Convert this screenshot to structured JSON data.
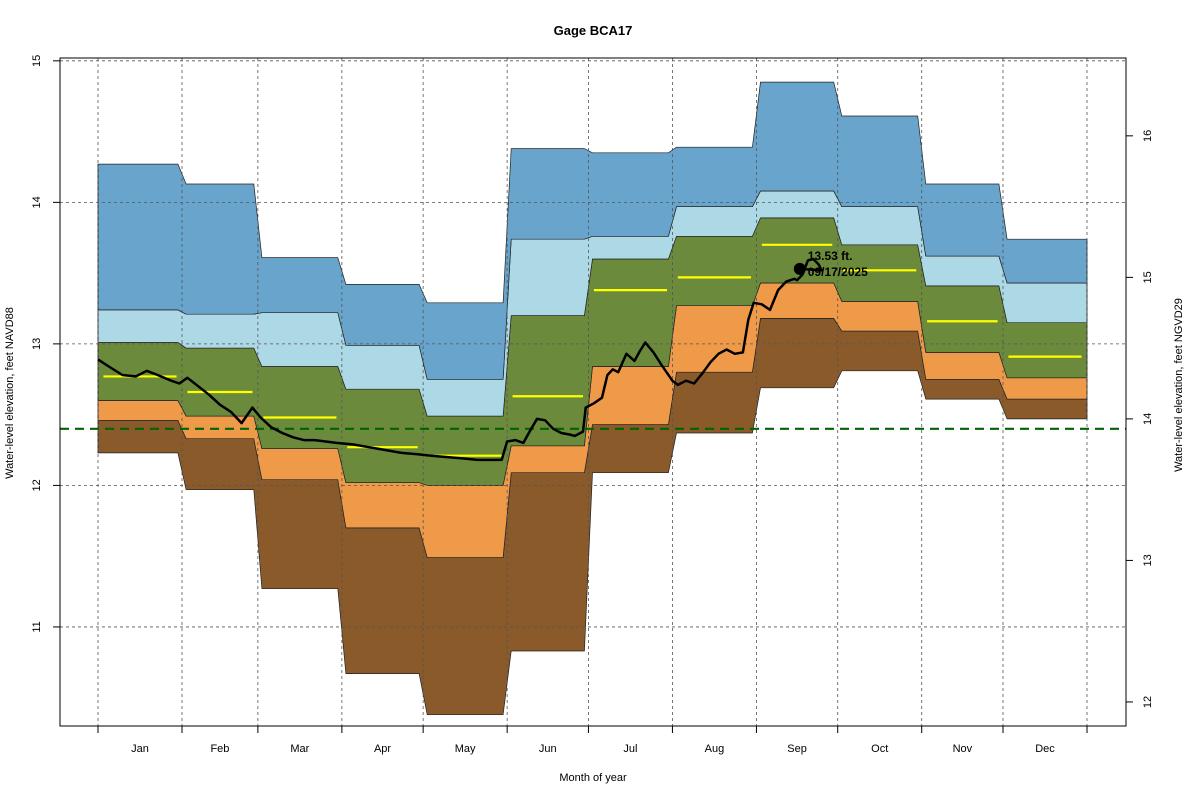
{
  "chart_data": {
    "type": "area",
    "title": "Gage BCA17",
    "xlabel": "Month of year",
    "ylabel_left": "Water-level elevation, feet NAVD88",
    "ylabel_right": "Water-level elevation, feet NGVD29",
    "yticks_left": [
      "11",
      "12",
      "13",
      "14",
      "15"
    ],
    "yticks_right": [
      "12",
      "13",
      "14",
      "15",
      "16"
    ],
    "ylim_left": [
      10.3,
      15.02
    ],
    "datum_offset": 1.53,
    "grid": "dashed",
    "months": [
      "Jan",
      "Feb",
      "Mar",
      "Apr",
      "May",
      "Jun",
      "Jul",
      "Aug",
      "Sep",
      "Oct",
      "Nov",
      "Dec"
    ],
    "band_colors": [
      "#8B5A2B",
      "#EF9A48",
      "#6C8A3C",
      "#ADD8E6",
      "#68A4CC"
    ],
    "median_color": "#FFFF00",
    "reference_line": {
      "value": 12.4,
      "color": "#006400"
    },
    "percentile_bounds": [
      {
        "month": "Jan",
        "min": 12.23,
        "p10": 12.46,
        "p25": 12.6,
        "p75": 13.01,
        "p90": 13.24,
        "max": 14.27,
        "median": 12.77
      },
      {
        "month": "Feb",
        "min": 11.97,
        "p10": 12.33,
        "p25": 12.49,
        "p75": 12.97,
        "p90": 13.21,
        "max": 14.13,
        "median": 12.66
      },
      {
        "month": "Mar",
        "min": 11.27,
        "p10": 12.04,
        "p25": 12.26,
        "p75": 12.84,
        "p90": 13.22,
        "max": 13.61,
        "median": 12.48
      },
      {
        "month": "Apr",
        "min": 10.67,
        "p10": 11.7,
        "p25": 12.02,
        "p75": 12.68,
        "p90": 12.99,
        "max": 13.42,
        "median": 12.27
      },
      {
        "month": "May",
        "min": 10.38,
        "p10": 11.49,
        "p25": 12.0,
        "p75": 12.49,
        "p90": 12.75,
        "max": 13.29,
        "median": 12.21
      },
      {
        "month": "Jun",
        "min": 10.83,
        "p10": 12.09,
        "p25": 12.28,
        "p75": 13.2,
        "p90": 13.74,
        "max": 14.38,
        "median": 12.63
      },
      {
        "month": "Jul",
        "min": 12.09,
        "p10": 12.43,
        "p25": 12.84,
        "p75": 13.6,
        "p90": 13.76,
        "max": 14.35,
        "median": 13.38
      },
      {
        "month": "Aug",
        "min": 12.37,
        "p10": 12.8,
        "p25": 13.27,
        "p75": 13.76,
        "p90": 13.97,
        "max": 14.39,
        "median": 13.47
      },
      {
        "month": "Sep",
        "min": 12.69,
        "p10": 13.18,
        "p25": 13.43,
        "p75": 13.89,
        "p90": 14.08,
        "max": 14.85,
        "median": 13.7
      },
      {
        "month": "Oct",
        "min": 12.81,
        "p10": 13.09,
        "p25": 13.3,
        "p75": 13.7,
        "p90": 13.97,
        "max": 14.61,
        "median": 13.52
      },
      {
        "month": "Nov",
        "min": 12.61,
        "p10": 12.75,
        "p25": 12.94,
        "p75": 13.41,
        "p90": 13.62,
        "max": 14.13,
        "median": 13.16
      },
      {
        "month": "Dec",
        "min": 12.47,
        "p10": 12.61,
        "p25": 12.76,
        "p75": 13.15,
        "p90": 13.43,
        "max": 13.74,
        "median": 12.91
      }
    ],
    "series": [
      {
        "values": [
          [
            1,
            12.89
          ],
          [
            5,
            12.84
          ],
          [
            10,
            12.78
          ],
          [
            15,
            12.77
          ],
          [
            19,
            12.81
          ],
          [
            23,
            12.78
          ],
          [
            28,
            12.74
          ],
          [
            31,
            12.72
          ],
          [
            34,
            12.76
          ],
          [
            38,
            12.7
          ],
          [
            42,
            12.64
          ],
          [
            46,
            12.57
          ],
          [
            50,
            12.52
          ],
          [
            54,
            12.44
          ],
          [
            58,
            12.55
          ],
          [
            61,
            12.48
          ],
          [
            65,
            12.41
          ],
          [
            69,
            12.37
          ],
          [
            73,
            12.34
          ],
          [
            77,
            12.32
          ],
          [
            81,
            12.32
          ],
          [
            85,
            12.31
          ],
          [
            89,
            12.3
          ],
          [
            95,
            12.29
          ],
          [
            101,
            12.27
          ],
          [
            107,
            12.25
          ],
          [
            113,
            12.23
          ],
          [
            119,
            12.22
          ],
          [
            124,
            12.21
          ],
          [
            130,
            12.2
          ],
          [
            136,
            12.19
          ],
          [
            141,
            12.18
          ],
          [
            146,
            12.18
          ],
          [
            150,
            12.18
          ],
          [
            152,
            12.31
          ],
          [
            155,
            12.32
          ],
          [
            158,
            12.3
          ],
          [
            160,
            12.37
          ],
          [
            163,
            12.47
          ],
          [
            166,
            12.46
          ],
          [
            169,
            12.4
          ],
          [
            172,
            12.37
          ],
          [
            175,
            12.36
          ],
          [
            177,
            12.35
          ],
          [
            180,
            12.38
          ],
          [
            181,
            12.55
          ],
          [
            184,
            12.58
          ],
          [
            187,
            12.62
          ],
          [
            189,
            12.78
          ],
          [
            191,
            12.82
          ],
          [
            193,
            12.8
          ],
          [
            196,
            12.93
          ],
          [
            199,
            12.88
          ],
          [
            201,
            12.95
          ],
          [
            203,
            13.01
          ],
          [
            206,
            12.94
          ],
          [
            209,
            12.85
          ],
          [
            213,
            12.74
          ],
          [
            215,
            12.71
          ],
          [
            218,
            12.74
          ],
          [
            221,
            12.72
          ],
          [
            224,
            12.79
          ],
          [
            227,
            12.87
          ],
          [
            230,
            12.93
          ],
          [
            233,
            12.96
          ],
          [
            236,
            12.93
          ],
          [
            239,
            12.94
          ],
          [
            241,
            13.17
          ],
          [
            243,
            13.29
          ],
          [
            246,
            13.28
          ],
          [
            249,
            13.24
          ],
          [
            252,
            13.38
          ],
          [
            255,
            13.44
          ],
          [
            258,
            13.46
          ],
          [
            259,
            13.45
          ],
          [
            261,
            13.49
          ],
          [
            263,
            13.59
          ],
          [
            265,
            13.6
          ],
          [
            267,
            13.56
          ],
          [
            268,
            13.52
          ],
          [
            260,
            13.53
          ]
        ]
      }
    ],
    "current_point": {
      "x": 260,
      "y": 13.53,
      "value_label": "13.53 ft.",
      "date_label": "09/17/2025"
    }
  }
}
